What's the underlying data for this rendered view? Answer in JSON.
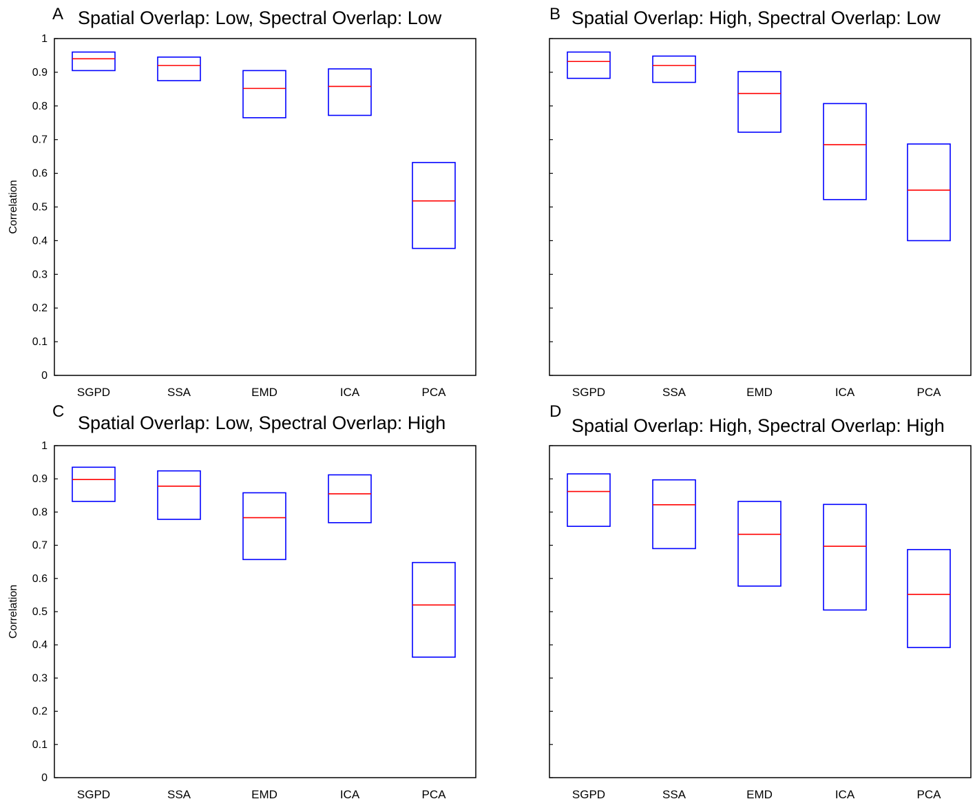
{
  "chart_data": [
    {
      "type": "box",
      "panel": "A",
      "title": "Spatial Overlap: Low, Spectral Overlap: Low",
      "ylabel": "Correlation",
      "ylim": [
        0,
        1
      ],
      "y_ticks": [
        "0",
        "0.1",
        "0.2",
        "0.3",
        "0.4",
        "0.5",
        "0.6",
        "0.7",
        "0.8",
        "0.9",
        "1"
      ],
      "show_y_tick_labels": true,
      "categories": [
        "SGPD",
        "SSA",
        "EMD",
        "ICA",
        "PCA"
      ],
      "boxes": [
        {
          "q1": 0.905,
          "median": 0.94,
          "q3": 0.96
        },
        {
          "q1": 0.875,
          "median": 0.92,
          "q3": 0.945
        },
        {
          "q1": 0.765,
          "median": 0.852,
          "q3": 0.905
        },
        {
          "q1": 0.772,
          "median": 0.858,
          "q3": 0.91
        },
        {
          "q1": 0.377,
          "median": 0.518,
          "q3": 0.632
        }
      ]
    },
    {
      "type": "box",
      "panel": "B",
      "title": "Spatial Overlap: High, Spectral Overlap: Low",
      "ylabel": "",
      "ylim": [
        0,
        1
      ],
      "y_ticks": [
        "0",
        "0.1",
        "0.2",
        "0.3",
        "0.4",
        "0.5",
        "0.6",
        "0.7",
        "0.8",
        "0.9",
        "1"
      ],
      "show_y_tick_labels": false,
      "categories": [
        "SGPD",
        "SSA",
        "EMD",
        "ICA",
        "PCA"
      ],
      "boxes": [
        {
          "q1": 0.882,
          "median": 0.932,
          "q3": 0.96
        },
        {
          "q1": 0.87,
          "median": 0.92,
          "q3": 0.948
        },
        {
          "q1": 0.722,
          "median": 0.837,
          "q3": 0.902
        },
        {
          "q1": 0.522,
          "median": 0.685,
          "q3": 0.807
        },
        {
          "q1": 0.4,
          "median": 0.55,
          "q3": 0.687
        }
      ]
    },
    {
      "type": "box",
      "panel": "C",
      "title": "Spatial Overlap: Low, Spectral Overlap: High",
      "ylabel": "Correlation",
      "ylim": [
        0,
        1
      ],
      "y_ticks": [
        "0",
        "0.1",
        "0.2",
        "0.3",
        "0.4",
        "0.5",
        "0.6",
        "0.7",
        "0.8",
        "0.9",
        "1"
      ],
      "show_y_tick_labels": true,
      "categories": [
        "SGPD",
        "SSA",
        "EMD",
        "ICA",
        "PCA"
      ],
      "boxes": [
        {
          "q1": 0.832,
          "median": 0.898,
          "q3": 0.935
        },
        {
          "q1": 0.778,
          "median": 0.878,
          "q3": 0.924
        },
        {
          "q1": 0.657,
          "median": 0.783,
          "q3": 0.858
        },
        {
          "q1": 0.768,
          "median": 0.855,
          "q3": 0.912
        },
        {
          "q1": 0.363,
          "median": 0.52,
          "q3": 0.648
        }
      ]
    },
    {
      "type": "box",
      "panel": "D",
      "title": "Spatial Overlap: High, Spectral Overlap: High",
      "ylabel": "",
      "ylim": [
        0,
        1
      ],
      "y_ticks": [
        "0",
        "0.1",
        "0.2",
        "0.3",
        "0.4",
        "0.5",
        "0.6",
        "0.7",
        "0.8",
        "0.9",
        "1"
      ],
      "show_y_tick_labels": false,
      "categories": [
        "SGPD",
        "SSA",
        "EMD",
        "ICA",
        "PCA"
      ],
      "boxes": [
        {
          "q1": 0.757,
          "median": 0.862,
          "q3": 0.915
        },
        {
          "q1": 0.69,
          "median": 0.822,
          "q3": 0.897
        },
        {
          "q1": 0.577,
          "median": 0.733,
          "q3": 0.832
        },
        {
          "q1": 0.505,
          "median": 0.697,
          "q3": 0.823
        },
        {
          "q1": 0.392,
          "median": 0.552,
          "q3": 0.687
        }
      ]
    }
  ],
  "colors": {
    "box": "#0000ff",
    "median": "#ff0000",
    "axis": "#000000"
  }
}
